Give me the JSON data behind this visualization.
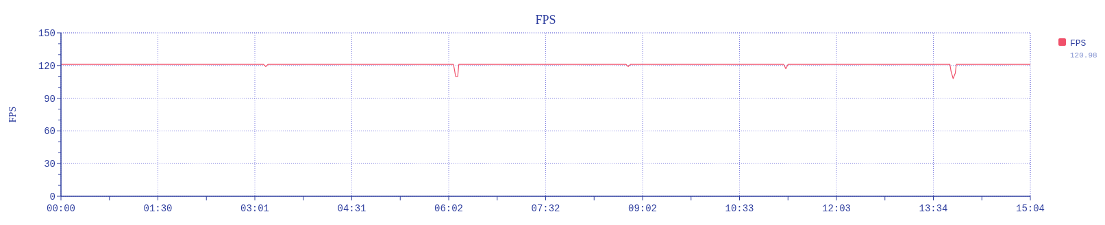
{
  "chart_data": {
    "type": "line",
    "title": "FPS",
    "ylabel": "FPS",
    "x": [
      0,
      189,
      191,
      193,
      366,
      367,
      368,
      370,
      371,
      527,
      529,
      531,
      674,
      676,
      678,
      829,
      830,
      832,
      834,
      835,
      904
    ],
    "series": [
      {
        "name": "FPS",
        "color": "#f0506a",
        "values": [
          121,
          121,
          119,
          121,
          121,
          116,
          110,
          110,
          121,
          121,
          119,
          121,
          121,
          117,
          121,
          121,
          115,
          108,
          113,
          121,
          121
        ]
      }
    ],
    "xlim": [
      0,
      904
    ],
    "xticks": [
      {
        "value": 0,
        "label": "00:00"
      },
      {
        "value": 45.2,
        "label": null
      },
      {
        "value": 90.4,
        "label": "01:30"
      },
      {
        "value": 135.6,
        "label": null
      },
      {
        "value": 180.8,
        "label": "03:01"
      },
      {
        "value": 226,
        "label": null
      },
      {
        "value": 271.2,
        "label": "04:31"
      },
      {
        "value": 316.4,
        "label": null
      },
      {
        "value": 361.6,
        "label": "06:02"
      },
      {
        "value": 406.8,
        "label": null
      },
      {
        "value": 452,
        "label": "07:32"
      },
      {
        "value": 497.2,
        "label": null
      },
      {
        "value": 542.4,
        "label": "09:02"
      },
      {
        "value": 587.6,
        "label": null
      },
      {
        "value": 632.8,
        "label": "10:33"
      },
      {
        "value": 678,
        "label": null
      },
      {
        "value": 723.2,
        "label": "12:03"
      },
      {
        "value": 768.4,
        "label": null
      },
      {
        "value": 813.6,
        "label": "13:34"
      },
      {
        "value": 858.8,
        "label": null
      },
      {
        "value": 904,
        "label": "15:04"
      }
    ],
    "ylim": [
      0,
      150
    ],
    "yticks": [
      0,
      {
        "value": 10,
        "label": null
      },
      {
        "value": 20,
        "label": null
      },
      30,
      {
        "value": 40,
        "label": null
      },
      {
        "value": 50,
        "label": null
      },
      60,
      {
        "value": 70,
        "label": null
      },
      {
        "value": 80,
        "label": null
      },
      90,
      {
        "value": 100,
        "label": null
      },
      {
        "value": 110,
        "label": null
      },
      120,
      {
        "value": 130,
        "label": null
      },
      {
        "value": 140,
        "label": null
      },
      150
    ],
    "grid": true,
    "legend": "right",
    "marker": "none",
    "line_style": "solid",
    "annotations": [
      "120.98"
    ]
  }
}
